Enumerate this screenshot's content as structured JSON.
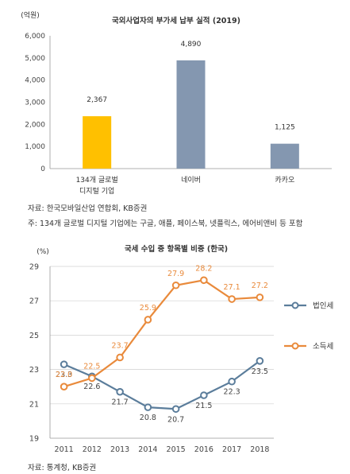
{
  "chart_data": [
    {
      "type": "bar",
      "title": "국외사업자의 부가세 납부 실적 (2019)",
      "ylabel": "(억원)",
      "ylim": [
        0,
        6000
      ],
      "yticks": [
        "6,000",
        "5,000",
        "4,000",
        "3,000",
        "2,000",
        "1,000",
        "0"
      ],
      "categories": [
        [
          "134개 글로벌",
          "디지털 기업"
        ],
        [
          "네이버"
        ],
        [
          "카카오"
        ]
      ],
      "values": [
        2367,
        4890,
        1125
      ],
      "value_labels": [
        "2,367",
        "4,890",
        "1,125"
      ],
      "colors": [
        "#FFC000",
        "#8497B0",
        "#8497B0"
      ],
      "source": "자료: 한국모바일산업 연합회, KB증권",
      "footnote": "주: 134개 글로벌 디지털 기업에는 구글, 애플, 페이스북, 넷플릭스, 에어비앤비 등 포함"
    },
    {
      "type": "line",
      "title": "국세 수입 중 항목별 비중 (한국)",
      "ylabel": "(%)",
      "ylim": [
        19,
        29
      ],
      "yticks": [
        "29",
        "27",
        "25",
        "23",
        "21",
        "19"
      ],
      "grid": true,
      "legend_position": "right",
      "x": [
        "2011",
        "2012",
        "2013",
        "2014",
        "2015",
        "2016",
        "2017",
        "2018"
      ],
      "series": [
        {
          "name": "법인세",
          "color": "#5B7D9B",
          "values": [
            23.3,
            22.6,
            21.7,
            20.8,
            20.7,
            21.5,
            22.3,
            23.5
          ],
          "labels": [
            "23.3",
            "22.6",
            "21.7",
            "20.8",
            "20.7",
            "21.5",
            "22.3",
            "23.5"
          ]
        },
        {
          "name": "소득세",
          "color": "#E98A3B",
          "values": [
            22.0,
            22.5,
            23.7,
            25.9,
            27.9,
            28.2,
            27.1,
            27.2
          ],
          "labels": [
            "22.0",
            "22.5",
            "23.7",
            "25.9",
            "27.9",
            "28.2",
            "27.1",
            "27.2"
          ]
        }
      ],
      "source": "자료: 통계청, KB증권"
    }
  ]
}
